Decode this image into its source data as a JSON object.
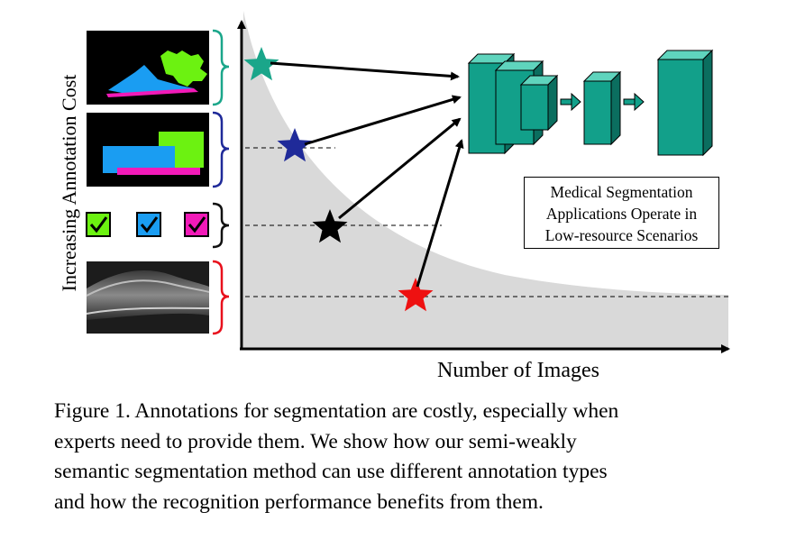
{
  "figure": {
    "ylabel": "Increasing Annotation Cost",
    "xlabel": "Number of  Images",
    "callout_lines": [
      "Medical Segmentation",
      "Applications Operate in",
      "Low-resource Scenarios"
    ],
    "annotation_types": [
      {
        "name": "dense pixel masks",
        "color": "#1aa68a",
        "star_color": "#1aa68a"
      },
      {
        "name": "bounding boxes",
        "color": "#1f2a99",
        "star_color": "#1f2a99"
      },
      {
        "name": "image-level labels",
        "color": "#111111",
        "star_color": "#000000"
      },
      {
        "name": "unlabeled images",
        "color": "#e8101c",
        "star_color": "#ee1111"
      }
    ],
    "label_colors": {
      "green": "#6cf211",
      "blue": "#1a9df2",
      "magenta": "#f21ab8"
    },
    "network_color": "#12a08a"
  },
  "caption_lines": [
    "Figure 1. Annotations for segmentation are costly, especially when",
    "experts need to provide them.  We show how our semi-weakly",
    "semantic segmentation method can use different annotation types",
    "and how the recognition performance benefits from them."
  ]
}
